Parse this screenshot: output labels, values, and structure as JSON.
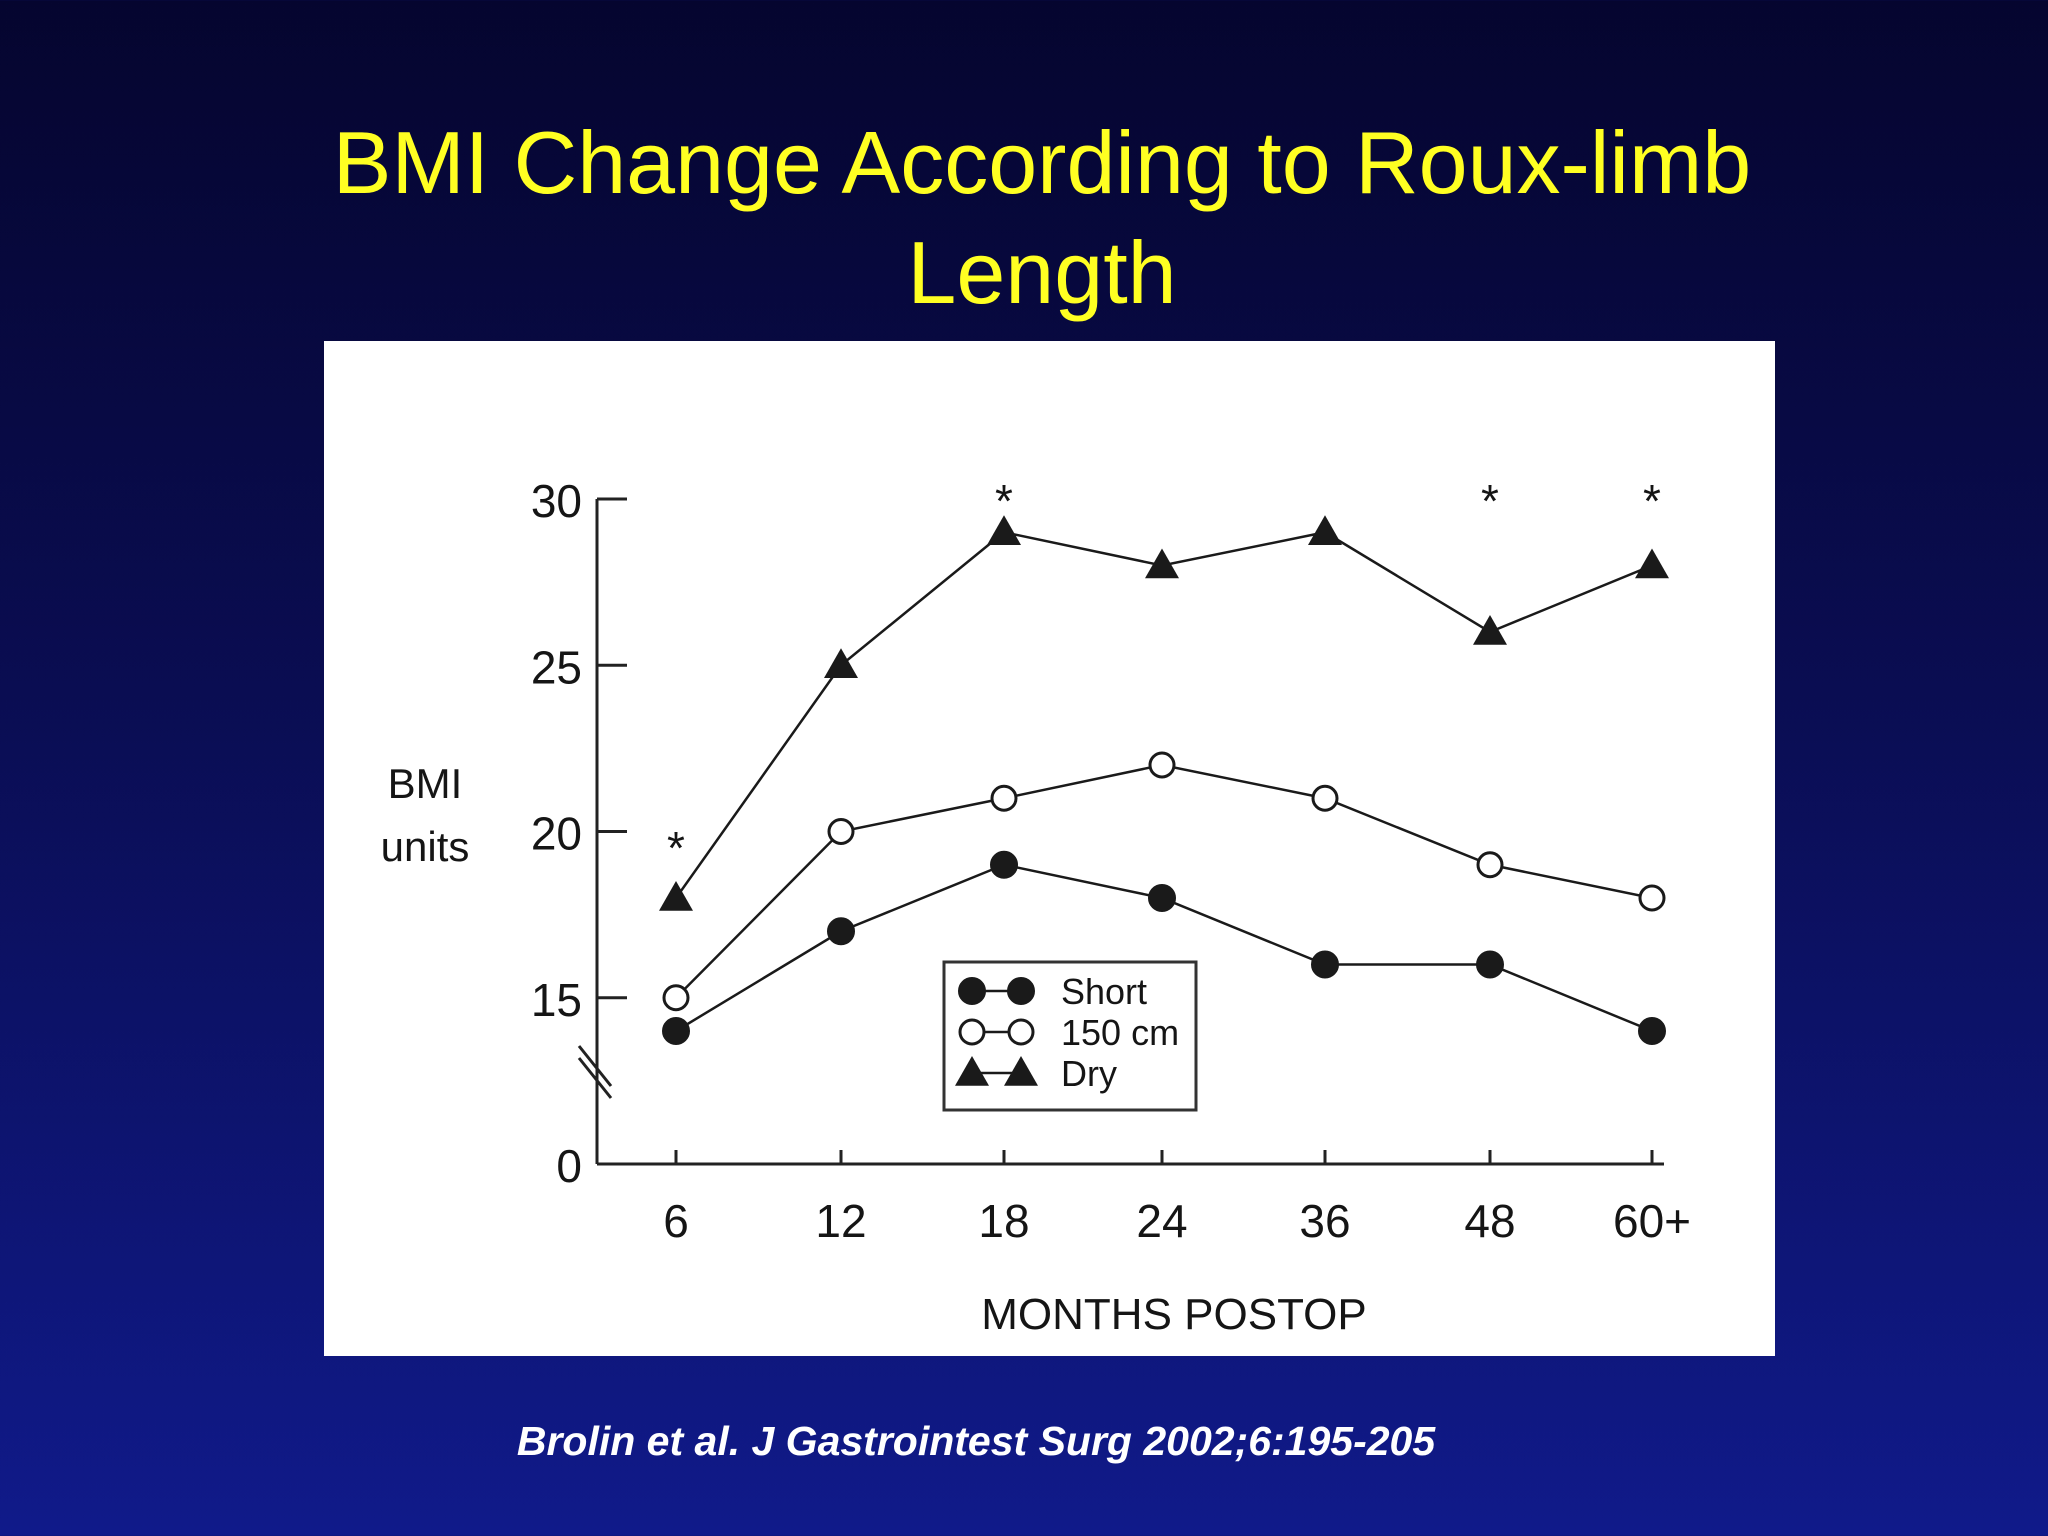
{
  "slide": {
    "title_line1": "BMI Change According to Roux-limb",
    "title_line2": "Length",
    "citation": "Brolin et al. J Gastrointest Surg 2002;6:195-205"
  },
  "chart_data": {
    "type": "line",
    "title": "",
    "xlabel": "MONTHS POSTOP",
    "ylabel": [
      "BMI",
      "units"
    ],
    "categories": [
      "6",
      "12",
      "18",
      "24",
      "36",
      "48",
      "60+"
    ],
    "y_ticks": [
      "0",
      "15",
      "20",
      "25",
      "30"
    ],
    "ylim": [
      12.5,
      30
    ],
    "axis_break": true,
    "series": [
      {
        "name": "Short",
        "marker": "filled-circle",
        "values": [
          14,
          17,
          19,
          18,
          16,
          16,
          14
        ]
      },
      {
        "name": "150 cm",
        "marker": "open-circle",
        "values": [
          15,
          20,
          21,
          22,
          21,
          19,
          18
        ]
      },
      {
        "name": "Dry",
        "marker": "filled-triangle",
        "values": [
          18,
          25,
          29,
          28,
          29,
          26,
          28
        ]
      }
    ],
    "significance_marks": [
      {
        "category": "6",
        "text": "*"
      },
      {
        "category": "18",
        "text": "*"
      },
      {
        "category": "48",
        "text": "*"
      },
      {
        "category": "60+",
        "text": "*"
      }
    ],
    "legend_position": "inside-bottom-center",
    "colors": {
      "line": "#1a1a1a",
      "background": "#ffffff"
    }
  }
}
